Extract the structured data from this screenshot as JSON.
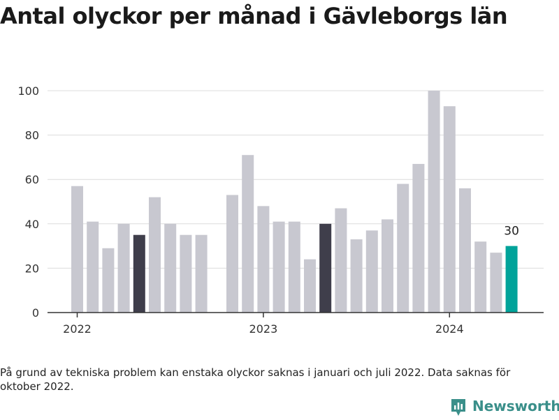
{
  "title": "Antal olyckor per månad i Gävleborgs län",
  "footnote": "På grund av tekniska problem kan enstaka olyckor saknas i januari och juli 2022. Data saknas för oktober 2022.",
  "brand": {
    "name": "Newsworthy",
    "color": "#3a8f8a"
  },
  "colors": {
    "default": "#c8c8d0",
    "highlight": "#3f3e4b",
    "latest": "#00a39a",
    "grid": "#dcdcdc",
    "axis": "#333333",
    "text": "#333333"
  },
  "chart_data": {
    "type": "bar",
    "yticks": [
      0,
      20,
      40,
      60,
      80,
      100
    ],
    "ylim": [
      0,
      100
    ],
    "x_labels": [
      "2022",
      "2023",
      "2024"
    ],
    "annotations": [
      {
        "month": "2024-05",
        "text": "30"
      }
    ],
    "series": [
      {
        "values": [
          {
            "month": "2022-01",
            "value": 57,
            "style": "default"
          },
          {
            "month": "2022-02",
            "value": 41,
            "style": "default"
          },
          {
            "month": "2022-03",
            "value": 29,
            "style": "default"
          },
          {
            "month": "2022-04",
            "value": 40,
            "style": "default"
          },
          {
            "month": "2022-05",
            "value": 35,
            "style": "highlight"
          },
          {
            "month": "2022-06",
            "value": 52,
            "style": "default"
          },
          {
            "month": "2022-07",
            "value": 40,
            "style": "default"
          },
          {
            "month": "2022-08",
            "value": 35,
            "style": "default"
          },
          {
            "month": "2022-09",
            "value": 35,
            "style": "default"
          },
          {
            "month": "2022-10",
            "value": null,
            "style": "default"
          },
          {
            "month": "2022-11",
            "value": 53,
            "style": "default"
          },
          {
            "month": "2022-12",
            "value": 71,
            "style": "default"
          },
          {
            "month": "2023-01",
            "value": 48,
            "style": "default"
          },
          {
            "month": "2023-02",
            "value": 41,
            "style": "default"
          },
          {
            "month": "2023-03",
            "value": 41,
            "style": "default"
          },
          {
            "month": "2023-04",
            "value": 24,
            "style": "default"
          },
          {
            "month": "2023-05",
            "value": 40,
            "style": "highlight"
          },
          {
            "month": "2023-06",
            "value": 47,
            "style": "default"
          },
          {
            "month": "2023-07",
            "value": 33,
            "style": "default"
          },
          {
            "month": "2023-08",
            "value": 37,
            "style": "default"
          },
          {
            "month": "2023-09",
            "value": 42,
            "style": "default"
          },
          {
            "month": "2023-10",
            "value": 58,
            "style": "default"
          },
          {
            "month": "2023-11",
            "value": 67,
            "style": "default"
          },
          {
            "month": "2023-12",
            "value": 100,
            "style": "default"
          },
          {
            "month": "2024-01",
            "value": 93,
            "style": "default"
          },
          {
            "month": "2024-02",
            "value": 56,
            "style": "default"
          },
          {
            "month": "2024-03",
            "value": 32,
            "style": "default"
          },
          {
            "month": "2024-04",
            "value": 27,
            "style": "default"
          },
          {
            "month": "2024-05",
            "value": 30,
            "style": "latest"
          }
        ]
      }
    ]
  }
}
